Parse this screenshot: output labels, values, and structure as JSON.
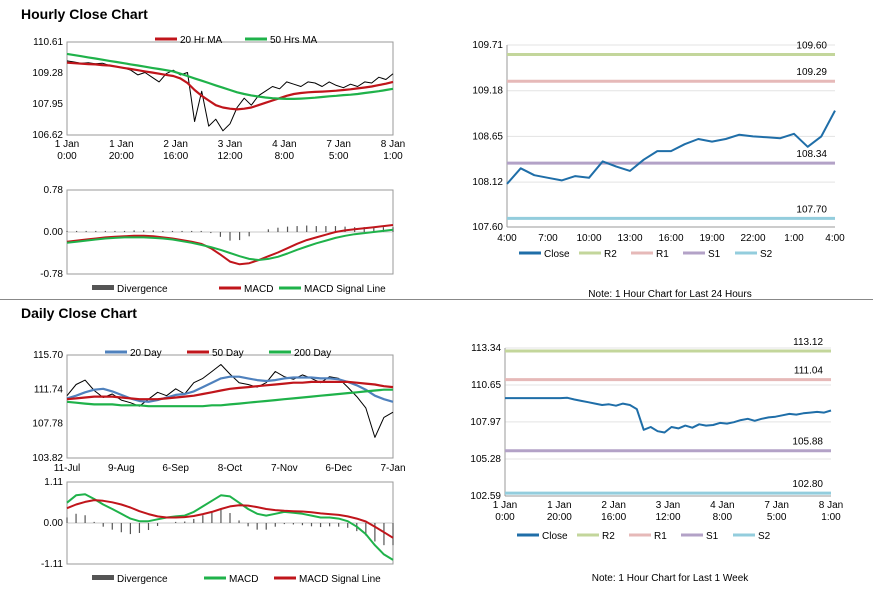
{
  "hourly": {
    "title": "Hourly Close Chart",
    "price_panel": {
      "chart_data": {
        "type": "line",
        "title": "",
        "legend": [
          "20 Hr MA",
          "50 Hrs MA"
        ],
        "colors": {
          "20 Hr MA": "#c0151b",
          "50 Hrs MA": "#1fb24a",
          "price": "#000000"
        },
        "yticks": [
          "110.61",
          "109.28",
          "107.95",
          "106.62"
        ],
        "ylim": [
          106.62,
          110.61
        ],
        "xticks": [
          [
            "1 Jan",
            "0:00"
          ],
          [
            "1 Jan",
            "20:00"
          ],
          [
            "2 Jan",
            "16:00"
          ],
          [
            "3 Jan",
            "12:00"
          ],
          [
            "4 Jan",
            "8:00"
          ],
          [
            "7 Jan",
            "5:00"
          ],
          [
            "8 Jan",
            "1:00"
          ]
        ],
        "series": [
          {
            "name": "price",
            "values": [
              109.8,
              109.75,
              109.7,
              109.72,
              109.68,
              109.7,
              109.6,
              109.55,
              109.5,
              109.4,
              109.2,
              109.3,
              109.1,
              108.9,
              109.25,
              109.4,
              109.2,
              109.3,
              107.2,
              108.5,
              107.0,
              107.3,
              106.8,
              107.1,
              107.8,
              108.2,
              107.9,
              108.3,
              108.5,
              108.7,
              108.6,
              108.9,
              108.8,
              108.7,
              108.9,
              108.85,
              108.7,
              108.9,
              108.75,
              108.65,
              108.8,
              108.7,
              108.9,
              108.85,
              109.1,
              109.0,
              109.25
            ]
          },
          {
            "name": "20 Hr MA",
            "values": [
              109.72,
              109.7,
              109.68,
              109.66,
              109.65,
              109.62,
              109.6,
              109.55,
              109.5,
              109.45,
              109.4,
              109.35,
              109.3,
              109.25,
              109.2,
              109.15,
              109.05,
              108.85,
              108.55,
              108.3,
              108.1,
              107.9,
              107.8,
              107.75,
              107.72,
              107.75,
              107.8,
              107.9,
              108.0,
              108.1,
              108.2,
              108.3,
              108.38,
              108.42,
              108.45,
              108.47,
              108.48,
              108.5,
              108.52,
              108.55,
              108.58,
              108.62,
              108.66,
              108.7,
              108.76,
              108.82,
              108.9
            ]
          },
          {
            "name": "50 Hrs MA",
            "values": [
              110.1,
              110.05,
              110.0,
              109.95,
              109.9,
              109.85,
              109.8,
              109.75,
              109.7,
              109.65,
              109.6,
              109.55,
              109.5,
              109.45,
              109.4,
              109.35,
              109.25,
              109.15,
              109.05,
              108.95,
              108.85,
              108.75,
              108.65,
              108.55,
              108.45,
              108.38,
              108.32,
              108.27,
              108.23,
              108.2,
              108.18,
              108.17,
              108.17,
              108.18,
              108.2,
              108.22,
              108.25,
              108.28,
              108.3,
              108.33,
              108.35,
              108.38,
              108.42,
              108.46,
              108.5,
              108.55,
              108.6
            ]
          }
        ]
      }
    },
    "macd_panel": {
      "chart_data": {
        "type": "line",
        "legend": [
          "Divergence",
          "MACD",
          "MACD Signal Line"
        ],
        "colors": {
          "Divergence": "#555555",
          "MACD": "#c0151b",
          "MACD Signal Line": "#1fb24a"
        },
        "yticks": [
          "0.78",
          "0.00",
          "-0.78"
        ],
        "ylim": [
          -0.78,
          0.78
        ],
        "series": [
          {
            "name": "MACD",
            "values": [
              -0.18,
              -0.16,
              -0.14,
              -0.12,
              -0.1,
              -0.09,
              -0.08,
              -0.07,
              -0.07,
              -0.08,
              -0.1,
              -0.12,
              -0.15,
              -0.18,
              -0.22,
              -0.3,
              -0.42,
              -0.55,
              -0.6,
              -0.58,
              -0.52,
              -0.45,
              -0.38,
              -0.3,
              -0.22,
              -0.15,
              -0.1,
              -0.05,
              0.0,
              0.03,
              0.05,
              0.07,
              0.09,
              0.11,
              0.13
            ]
          },
          {
            "name": "MACD Signal Line",
            "values": [
              -0.2,
              -0.18,
              -0.16,
              -0.14,
              -0.12,
              -0.11,
              -0.1,
              -0.1,
              -0.1,
              -0.11,
              -0.12,
              -0.14,
              -0.17,
              -0.2,
              -0.24,
              -0.28,
              -0.33,
              -0.39,
              -0.45,
              -0.5,
              -0.52,
              -0.5,
              -0.46,
              -0.4,
              -0.33,
              -0.27,
              -0.21,
              -0.16,
              -0.11,
              -0.07,
              -0.04,
              -0.02,
              0.0,
              0.02,
              0.04
            ]
          },
          {
            "name": "Divergence",
            "values": [
              0.02,
              0.02,
              0.02,
              0.02,
              0.02,
              0.02,
              0.02,
              0.03,
              0.03,
              0.03,
              0.02,
              0.02,
              0.02,
              0.02,
              0.02,
              -0.02,
              -0.09,
              -0.16,
              -0.15,
              -0.08,
              0.0,
              0.05,
              0.08,
              0.1,
              0.11,
              0.12,
              0.11,
              0.11,
              0.11,
              0.1,
              0.09,
              0.09,
              0.09,
              0.09,
              0.09
            ]
          }
        ]
      }
    },
    "levels_panel": {
      "chart_data": {
        "type": "line",
        "yticks": [
          "109.71",
          "109.18",
          "108.65",
          "108.12",
          "107.60"
        ],
        "ylim": [
          107.6,
          109.71
        ],
        "xticks": [
          "4:00",
          "7:00",
          "10:00",
          "13:00",
          "16:00",
          "19:00",
          "22:00",
          "1:00",
          "4:00"
        ],
        "levels": [
          {
            "name": "R2",
            "value": 109.6,
            "label": "109.60",
            "color": "#c3d69b"
          },
          {
            "name": "R1",
            "value": 109.29,
            "label": "109.29",
            "color": "#e6b9b8"
          },
          {
            "name": "S1",
            "value": 108.34,
            "label": "108.34",
            "color": "#b3a2c7"
          },
          {
            "name": "S2",
            "value": 107.7,
            "label": "107.70",
            "color": "#93cddd"
          }
        ],
        "series": [
          {
            "name": "Close",
            "color": "#1f6ea8",
            "values": [
              108.1,
              108.28,
              108.2,
              108.17,
              108.14,
              108.19,
              108.17,
              108.36,
              108.3,
              108.25,
              108.38,
              108.48,
              108.48,
              108.56,
              108.62,
              108.59,
              108.62,
              108.67,
              108.65,
              108.64,
              108.63,
              108.68,
              108.53,
              108.65,
              108.95
            ]
          }
        ]
      },
      "legend": [
        "Close",
        "R2",
        "R1",
        "S1",
        "S2"
      ],
      "note": "Note: 1 Hour Chart for Last 24 Hours"
    }
  },
  "daily": {
    "title": "Daily Close Chart",
    "price_panel": {
      "chart_data": {
        "type": "line",
        "legend": [
          "20 Day",
          "50 Day",
          "200 Day"
        ],
        "colors": {
          "20 Day": "#4f81bd",
          "50 Day": "#c0151b",
          "200 Day": "#1fb24a",
          "price": "#000000"
        },
        "yticks": [
          "115.70",
          "111.74",
          "107.78",
          "103.82"
        ],
        "ylim": [
          103.82,
          115.7
        ],
        "xticks": [
          "11-Jul",
          "9-Aug",
          "6-Sep",
          "8-Oct",
          "7-Nov",
          "6-Dec",
          "7-Jan"
        ],
        "series": [
          {
            "name": "price",
            "values": [
              111.0,
              112.3,
              112.8,
              111.6,
              110.8,
              111.2,
              110.5,
              110.2,
              109.8,
              110.6,
              111.4,
              111.0,
              111.8,
              111.2,
              112.5,
              113.0,
              113.8,
              114.6,
              113.5,
              112.5,
              112.3,
              112.0,
              112.5,
              113.8,
              113.2,
              112.9,
              113.4,
              113.0,
              112.5,
              113.2,
              113.0,
              112.0,
              110.9,
              109.6,
              106.2,
              108.5,
              109.1
            ]
          },
          {
            "name": "20 Day",
            "values": [
              110.7,
              111.0,
              111.4,
              111.7,
              111.8,
              111.5,
              111.1,
              110.7,
              110.4,
              110.3,
              110.5,
              110.8,
              111.1,
              111.2,
              111.5,
              112.0,
              112.5,
              113.0,
              113.2,
              113.2,
              113.0,
              112.8,
              112.7,
              112.8,
              113.0,
              113.1,
              113.1,
              113.1,
              113.0,
              113.0,
              112.9,
              112.6,
              112.2,
              111.7,
              111.0,
              110.6,
              110.3
            ]
          },
          {
            "name": "50 Day",
            "values": [
              110.6,
              110.7,
              110.8,
              110.9,
              110.9,
              110.9,
              110.8,
              110.7,
              110.6,
              110.6,
              110.6,
              110.7,
              110.8,
              110.9,
              111.0,
              111.2,
              111.4,
              111.6,
              111.8,
              111.9,
              112.0,
              112.1,
              112.2,
              112.3,
              112.4,
              112.5,
              112.5,
              112.6,
              112.6,
              112.6,
              112.6,
              112.6,
              112.5,
              112.4,
              112.3,
              112.1,
              112.0
            ]
          },
          {
            "name": "200 Day",
            "values": [
              110.3,
              110.2,
              110.1,
              110.0,
              110.0,
              110.0,
              109.9,
              109.9,
              109.9,
              109.8,
              109.8,
              109.8,
              109.8,
              109.8,
              109.8,
              109.8,
              109.9,
              109.9,
              110.0,
              110.1,
              110.2,
              110.3,
              110.4,
              110.5,
              110.6,
              110.7,
              110.8,
              110.9,
              111.0,
              111.1,
              111.2,
              111.3,
              111.4,
              111.5,
              111.6,
              111.7,
              111.7
            ]
          }
        ]
      }
    },
    "macd_panel": {
      "chart_data": {
        "type": "line",
        "legend": [
          "Divergence",
          "MACD",
          "MACD Signal Line"
        ],
        "colors": {
          "Divergence": "#555555",
          "MACD": "#1fb24a",
          "MACD Signal Line": "#c0151b"
        },
        "yticks": [
          "1.11",
          "0.00",
          "-1.11"
        ],
        "ylim": [
          -1.11,
          1.11
        ],
        "series": [
          {
            "name": "MACD",
            "values": [
              0.55,
              0.75,
              0.78,
              0.65,
              0.5,
              0.38,
              0.25,
              0.12,
              0.05,
              0.05,
              0.1,
              0.15,
              0.18,
              0.2,
              0.3,
              0.45,
              0.6,
              0.75,
              0.72,
              0.55,
              0.38,
              0.25,
              0.2,
              0.25,
              0.3,
              0.28,
              0.25,
              0.2,
              0.15,
              0.15,
              0.12,
              0.05,
              -0.1,
              -0.3,
              -0.6,
              -0.85,
              -1.0
            ]
          },
          {
            "name": "MACD Signal Line",
            "values": [
              0.4,
              0.5,
              0.57,
              0.62,
              0.6,
              0.56,
              0.5,
              0.42,
              0.32,
              0.24,
              0.18,
              0.15,
              0.15,
              0.16,
              0.19,
              0.24,
              0.3,
              0.38,
              0.45,
              0.48,
              0.47,
              0.43,
              0.38,
              0.35,
              0.33,
              0.32,
              0.31,
              0.29,
              0.26,
              0.24,
              0.22,
              0.18,
              0.12,
              0.04,
              -0.1,
              -0.25,
              -0.4
            ]
          },
          {
            "name": "Divergence",
            "values": [
              0.15,
              0.25,
              0.21,
              0.03,
              -0.1,
              -0.18,
              -0.25,
              -0.3,
              -0.27,
              -0.19,
              -0.08,
              0.0,
              0.03,
              0.04,
              0.11,
              0.21,
              0.3,
              0.37,
              0.27,
              0.07,
              -0.09,
              -0.18,
              -0.18,
              -0.1,
              -0.03,
              -0.04,
              -0.06,
              -0.09,
              -0.11,
              -0.09,
              -0.1,
              -0.13,
              -0.22,
              -0.34,
              -0.5,
              -0.6,
              -0.6
            ]
          }
        ]
      }
    },
    "levels_panel": {
      "chart_data": {
        "type": "line",
        "yticks": [
          "113.34",
          "110.65",
          "107.97",
          "105.28",
          "102.59"
        ],
        "ylim": [
          102.59,
          113.34
        ],
        "xticks": [
          [
            "1 Jan",
            "0:00"
          ],
          [
            "1 Jan",
            "20:00"
          ],
          [
            "2 Jan",
            "16:00"
          ],
          [
            "3 Jan",
            "12:00"
          ],
          [
            "4 Jan",
            "8:00"
          ],
          [
            "7 Jan",
            "5:00"
          ],
          [
            "8 Jan",
            "1:00"
          ]
        ],
        "levels": [
          {
            "name": "R2",
            "value": 113.12,
            "label": "113.12",
            "color": "#c3d69b"
          },
          {
            "name": "R1",
            "value": 111.04,
            "label": "111.04",
            "color": "#e6b9b8"
          },
          {
            "name": "S1",
            "value": 105.88,
            "label": "105.88",
            "color": "#b3a2c7"
          },
          {
            "name": "S2",
            "value": 102.8,
            "label": "102.80",
            "color": "#93cddd"
          }
        ],
        "series": [
          {
            "name": "Close",
            "color": "#1f6ea8",
            "values": [
              109.7,
              109.7,
              109.7,
              109.7,
              109.7,
              109.7,
              109.7,
              109.7,
              109.7,
              109.72,
              109.6,
              109.5,
              109.4,
              109.3,
              109.2,
              109.25,
              109.15,
              109.3,
              109.2,
              108.9,
              107.4,
              107.6,
              107.3,
              107.2,
              107.6,
              107.5,
              107.7,
              107.55,
              107.8,
              107.7,
              107.75,
              107.9,
              107.85,
              107.95,
              108.1,
              108.2,
              108.05,
              108.2,
              108.3,
              108.35,
              108.45,
              108.55,
              108.5,
              108.6,
              108.65,
              108.7,
              108.65,
              108.8
            ]
          }
        ]
      },
      "legend": [
        "Close",
        "R2",
        "R1",
        "S1",
        "S2"
      ],
      "note": "Note: 1 Hour Chart for Last 1 Week"
    }
  }
}
